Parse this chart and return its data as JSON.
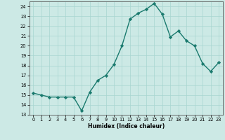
{
  "x": [
    0,
    1,
    2,
    3,
    4,
    5,
    6,
    7,
    8,
    9,
    10,
    11,
    12,
    13,
    14,
    15,
    16,
    17,
    18,
    19,
    20,
    21,
    22,
    23
  ],
  "y": [
    15.2,
    15.0,
    14.8,
    14.8,
    14.8,
    14.8,
    13.4,
    15.3,
    16.5,
    17.0,
    18.1,
    20.0,
    22.7,
    23.3,
    23.7,
    24.3,
    23.2,
    20.9,
    21.5,
    20.5,
    20.0,
    18.2,
    17.4,
    18.3
  ],
  "xlabel": "Humidex (Indice chaleur)",
  "ylim": [
    13,
    24.5
  ],
  "xlim": [
    -0.5,
    23.5
  ],
  "yticks": [
    13,
    14,
    15,
    16,
    17,
    18,
    19,
    20,
    21,
    22,
    23,
    24
  ],
  "xticks": [
    0,
    1,
    2,
    3,
    4,
    5,
    6,
    7,
    8,
    9,
    10,
    11,
    12,
    13,
    14,
    15,
    16,
    17,
    18,
    19,
    20,
    21,
    22,
    23
  ],
  "line_color": "#1a7a6e",
  "marker": "D",
  "marker_size": 2.2,
  "line_width": 1.0,
  "bg_color": "#cce9e5",
  "grid_color": "#a8d5d0",
  "spine_color": "#555555"
}
